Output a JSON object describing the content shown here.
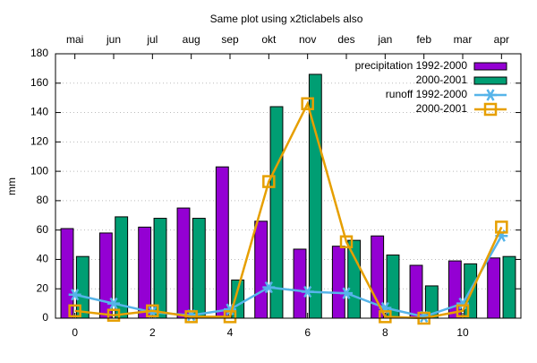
{
  "chart_data": {
    "type": "bar",
    "title": "Same plot using x2ticlabels also",
    "ylabel": "mm",
    "x": [
      0,
      1,
      2,
      3,
      4,
      5,
      6,
      7,
      8,
      9,
      10,
      11
    ],
    "categories": [
      "mai",
      "jun",
      "jul",
      "aug",
      "sep",
      "okt",
      "nov",
      "des",
      "jan",
      "feb",
      "mar",
      "apr"
    ],
    "xlim": [
      -0.5,
      11.5
    ],
    "xticks": [
      0,
      2,
      4,
      6,
      8,
      10
    ],
    "ylim": [
      0,
      180
    ],
    "yticks": [
      0,
      20,
      40,
      60,
      80,
      100,
      120,
      140,
      160,
      180
    ],
    "grid": true,
    "legend": "top-right",
    "series": [
      {
        "name": "precipitation 1992-2000",
        "type": "bar",
        "color": "#9400d3",
        "values": [
          61,
          58,
          62,
          75,
          103,
          66,
          47,
          49,
          56,
          36,
          39,
          41
        ]
      },
      {
        "name": "2000-2001",
        "type": "bar",
        "color": "#009e73",
        "values": [
          42,
          69,
          68,
          68,
          26,
          144,
          166,
          53,
          43,
          22,
          37,
          42
        ]
      },
      {
        "name": "runoff 1992-2000",
        "type": "line",
        "marker": "star",
        "color": "#56b4e9",
        "values": [
          16,
          10,
          4,
          2,
          6,
          21,
          18,
          17,
          7,
          1,
          10,
          56
        ]
      },
      {
        "name": "2000-2001",
        "type": "line",
        "marker": "square",
        "color": "#e69f00",
        "values": [
          5,
          2,
          5,
          1,
          1,
          93,
          146,
          52,
          1,
          0,
          5,
          62
        ]
      }
    ]
  }
}
